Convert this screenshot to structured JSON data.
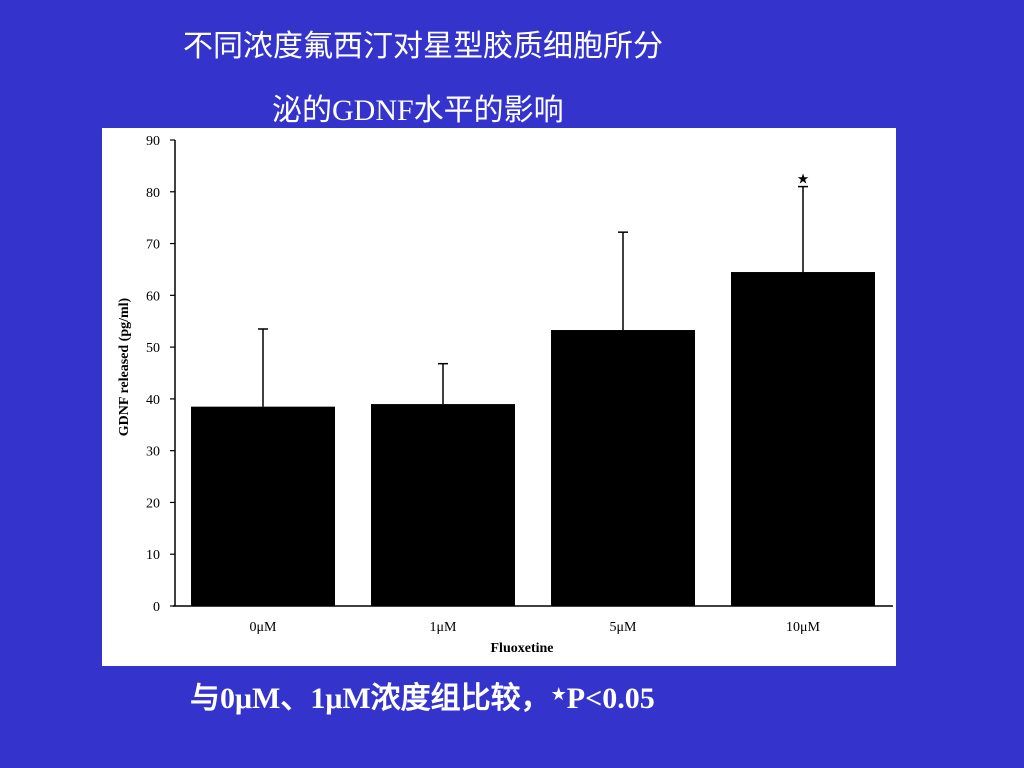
{
  "chart_data": {
    "type": "bar",
    "title": [
      "不同浓度氟西汀对星型胶质细胞所分",
      "泌的GDNF水平的影响"
    ],
    "categories": [
      "0μM",
      "1μM",
      "5μM",
      "10μM"
    ],
    "values": [
      38.5,
      39,
      53.3,
      64.5
    ],
    "errors": [
      15,
      7.8,
      18.9,
      16.5
    ],
    "value_annotations": [
      null,
      null,
      null,
      "★"
    ],
    "color": "#000000",
    "xlabel": "Fluoxetine",
    "ylabel": "GDNF released (pg/ml)",
    "ylim": [
      0,
      90
    ],
    "yticks": [
      0,
      10,
      20,
      30,
      40,
      50,
      60,
      70,
      80,
      90
    ],
    "grid": false,
    "footnote": [
      "与0μM、1μM浓度组比较，",
      "★",
      "P<0.05"
    ]
  }
}
